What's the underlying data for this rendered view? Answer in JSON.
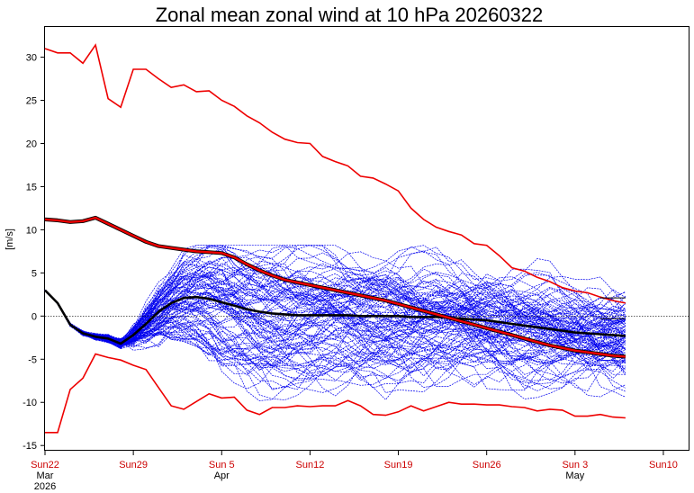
{
  "chart_data": {
    "type": "line",
    "title": "Zonal mean zonal wind at 10 hPa 20260322",
    "ylabel": "[m/s]",
    "xlabel": "",
    "ylim": [
      -15.5,
      33.5
    ],
    "xlim": [
      0,
      51
    ],
    "y_ticks": [
      -15,
      -10,
      -5,
      0,
      5,
      10,
      15,
      20,
      25,
      30
    ],
    "x_ticks": [
      {
        "day": 0,
        "label": "Sun22",
        "sub1": "Mar",
        "sub2": "2026"
      },
      {
        "day": 7,
        "label": "Sun29",
        "sub1": "",
        "sub2": ""
      },
      {
        "day": 14,
        "label": "Sun 5",
        "sub1": "Apr",
        "sub2": ""
      },
      {
        "day": 21,
        "label": "Sun12",
        "sub1": "",
        "sub2": ""
      },
      {
        "day": 28,
        "label": "Sun19",
        "sub1": "",
        "sub2": ""
      },
      {
        "day": 35,
        "label": "Sun26",
        "sub1": "",
        "sub2": ""
      },
      {
        "day": 42,
        "label": "Sun 3",
        "sub1": "May",
        "sub2": ""
      },
      {
        "day": 49,
        "label": "Sun10",
        "sub1": "",
        "sub2": ""
      }
    ],
    "zero_line": true,
    "colors": {
      "ensemble": "#0000ee",
      "climatology": "#ee0000",
      "climatology_mean_outline": "#000000",
      "ensemble_mean": "#000000",
      "text": "#000000",
      "date_text": "#cc0000"
    },
    "series": [
      {
        "name": "climatology max",
        "x": [
          0,
          1,
          2,
          3,
          4,
          5,
          6,
          7,
          8,
          9,
          10,
          11,
          12,
          13,
          14,
          15,
          16,
          17,
          18,
          19,
          20,
          21,
          22,
          23,
          24,
          25,
          26,
          27,
          28,
          29,
          30,
          31,
          32,
          33,
          34,
          35,
          36,
          37,
          38,
          39,
          40,
          41,
          42,
          43,
          44,
          45,
          46
        ],
        "values": [
          31,
          30.5,
          30.5,
          29.3,
          31.4,
          25.2,
          24.2,
          28.6,
          28.6,
          27.5,
          26.5,
          26.8,
          26,
          26.1,
          25,
          24.3,
          23.2,
          22.4,
          21.3,
          20.5,
          20.1,
          20,
          18.5,
          17.9,
          17.4,
          16.2,
          16,
          15.3,
          14.5,
          12.5,
          11.2,
          10.3,
          9.8,
          9.4,
          8.4,
          8.2,
          7,
          5.6,
          5.2,
          4.5,
          4,
          3.3,
          2.9,
          2.7,
          2.2,
          1.8,
          1.5
        ]
      },
      {
        "name": "climatology mean",
        "x": [
          0,
          1,
          2,
          3,
          4,
          5,
          6,
          7,
          8,
          9,
          10,
          11,
          12,
          13,
          14,
          15,
          16,
          17,
          18,
          19,
          20,
          21,
          22,
          23,
          24,
          25,
          26,
          27,
          28,
          29,
          30,
          31,
          32,
          33,
          34,
          35,
          36,
          37,
          38,
          39,
          40,
          41,
          42,
          43,
          44,
          45,
          46
        ],
        "values": [
          11.2,
          11.1,
          10.9,
          11,
          11.4,
          10.7,
          10,
          9.3,
          8.6,
          8.1,
          7.9,
          7.7,
          7.5,
          7.4,
          7.3,
          6.8,
          6,
          5.3,
          4.7,
          4.2,
          3.9,
          3.6,
          3.3,
          3,
          2.7,
          2.4,
          2.1,
          1.8,
          1.4,
          1,
          0.6,
          0.2,
          -0.2,
          -0.6,
          -1,
          -1.4,
          -1.8,
          -2.2,
          -2.6,
          -3,
          -3.4,
          -3.7,
          -4,
          -4.2,
          -4.4,
          -4.6,
          -4.7
        ]
      },
      {
        "name": "climatology min",
        "x": [
          0,
          1,
          2,
          3,
          4,
          5,
          6,
          7,
          8,
          9,
          10,
          11,
          12,
          13,
          14,
          15,
          16,
          17,
          18,
          19,
          20,
          21,
          22,
          23,
          24,
          25,
          26,
          27,
          28,
          29,
          30,
          31,
          32,
          33,
          34,
          35,
          36,
          37,
          38,
          39,
          40,
          41,
          42,
          43,
          44,
          45,
          46
        ],
        "values": [
          -13.5,
          -13.5,
          -8.5,
          -7.2,
          -4.4,
          -4.8,
          -5.1,
          -5.7,
          -6.2,
          -8.3,
          -10.4,
          -10.8,
          -9.9,
          -9,
          -9.5,
          -9.4,
          -10.9,
          -11.4,
          -10.6,
          -10.6,
          -10.4,
          -10.5,
          -10.4,
          -10.4,
          -9.8,
          -10.4,
          -11.4,
          -11.5,
          -11.1,
          -10.4,
          -11,
          -10.5,
          -10,
          -10.2,
          -10.2,
          -10.3,
          -10.3,
          -10.5,
          -10.6,
          -11,
          -10.8,
          -10.9,
          -11.6,
          -11.6,
          -11.4,
          -11.7,
          -11.8
        ]
      },
      {
        "name": "ensemble mean",
        "x": [
          0,
          1,
          2,
          3,
          4,
          5,
          6,
          7,
          8,
          9,
          10,
          11,
          12,
          13,
          14,
          15,
          16,
          17,
          18,
          19,
          20,
          21,
          22,
          23,
          24,
          25,
          26,
          27,
          28,
          29,
          30,
          31,
          32,
          33,
          34,
          35,
          36,
          37,
          38,
          39,
          40,
          41,
          42,
          43,
          44,
          45,
          46
        ],
        "values": [
          3,
          1.5,
          -1,
          -2,
          -2.4,
          -2.6,
          -3.2,
          -2.2,
          -0.9,
          0.5,
          1.5,
          2.1,
          2.2,
          2,
          1.6,
          1.2,
          0.8,
          0.5,
          0.3,
          0.2,
          0.1,
          0.1,
          0.1,
          0.1,
          0.1,
          0,
          0,
          0,
          0,
          -0.1,
          -0.1,
          -0.1,
          -0.2,
          -0.3,
          -0.4,
          -0.5,
          -0.7,
          -0.9,
          -1.1,
          -1.3,
          -1.5,
          -1.7,
          -1.9,
          -2,
          -2.1,
          -2.2,
          -2.3
        ]
      }
    ],
    "ensemble": {
      "members": 100,
      "x_start": 0,
      "x_end": 46,
      "common_start": [
        3,
        1.5,
        -1,
        -2,
        -2.4,
        -2.6,
        -3.2
      ],
      "common_end_day": 6,
      "peak_day_range": [
        9,
        14
      ],
      "peak_value_range": [
        -3,
        8
      ],
      "late_range": [
        -9,
        8
      ],
      "final_range": [
        -8.8,
        2.1
      ]
    }
  }
}
